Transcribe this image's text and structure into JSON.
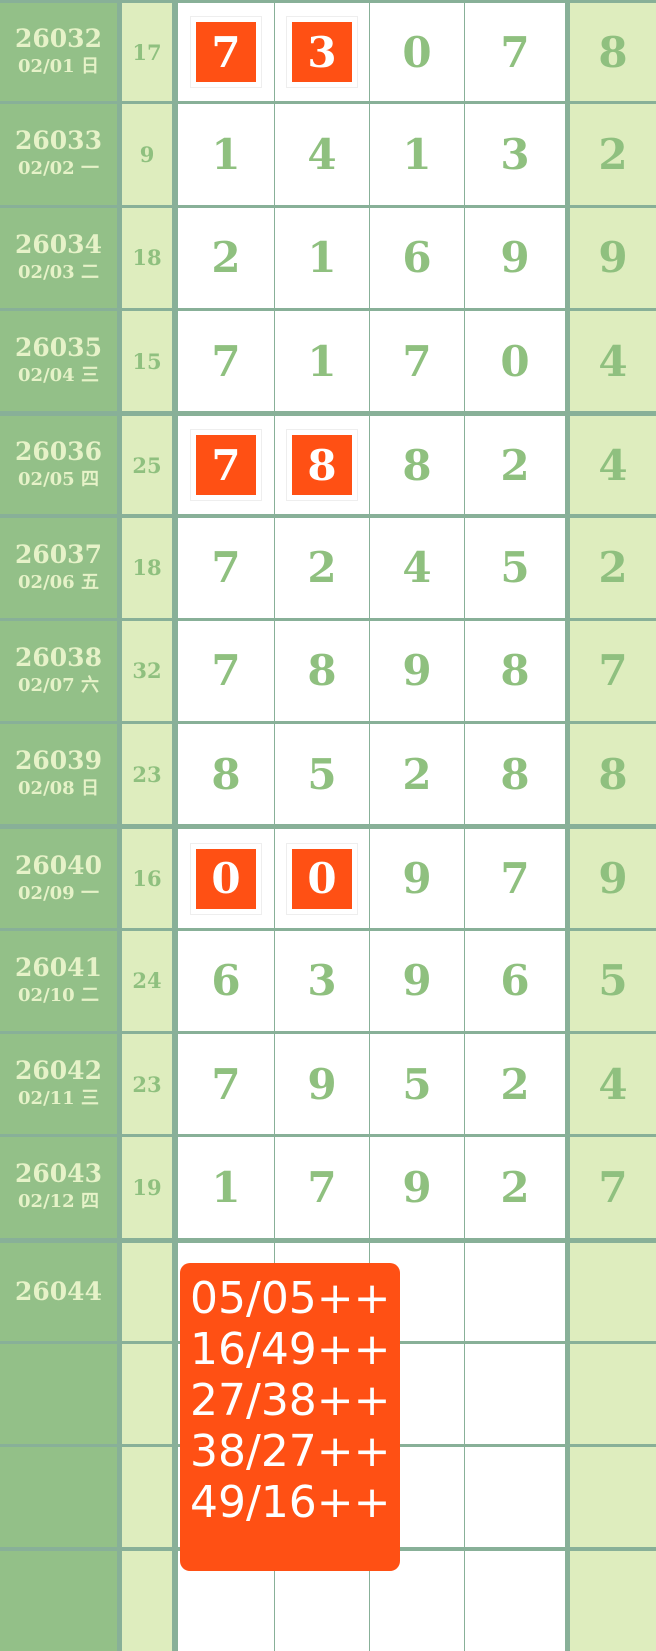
{
  "colors": {
    "id_bg": "#93c088",
    "sum_bg": "#deedbe",
    "grid": "#88b098",
    "digit": "#8fc07f",
    "highlight": "#ff5014"
  },
  "rows": [
    {
      "period": "26032",
      "date": "02/01 日",
      "sum": "17",
      "digits": [
        "7",
        "3",
        "0",
        "7"
      ],
      "last": "8",
      "highlight": [
        0,
        1
      ]
    },
    {
      "period": "26033",
      "date": "02/02 一",
      "sum": "9",
      "digits": [
        "1",
        "4",
        "1",
        "3"
      ],
      "last": "2",
      "highlight": []
    },
    {
      "period": "26034",
      "date": "02/03 二",
      "sum": "18",
      "digits": [
        "2",
        "1",
        "6",
        "9"
      ],
      "last": "9",
      "highlight": []
    },
    {
      "period": "26035",
      "date": "02/04 三",
      "sum": "15",
      "digits": [
        "7",
        "1",
        "7",
        "0"
      ],
      "last": "4",
      "highlight": []
    },
    {
      "period": "26036",
      "date": "02/05 四",
      "sum": "25",
      "digits": [
        "7",
        "8",
        "8",
        "2"
      ],
      "last": "4",
      "highlight": [
        0,
        1
      ]
    },
    {
      "period": "26037",
      "date": "02/06 五",
      "sum": "18",
      "digits": [
        "7",
        "2",
        "4",
        "5"
      ],
      "last": "2",
      "highlight": []
    },
    {
      "period": "26038",
      "date": "02/07 六",
      "sum": "32",
      "digits": [
        "7",
        "8",
        "9",
        "8"
      ],
      "last": "7",
      "highlight": []
    },
    {
      "period": "26039",
      "date": "02/08 日",
      "sum": "23",
      "digits": [
        "8",
        "5",
        "2",
        "8"
      ],
      "last": "8",
      "highlight": []
    },
    {
      "period": "26040",
      "date": "02/09 一",
      "sum": "16",
      "digits": [
        "0",
        "0",
        "9",
        "7"
      ],
      "last": "9",
      "highlight": [
        0,
        1
      ]
    },
    {
      "period": "26041",
      "date": "02/10 二",
      "sum": "24",
      "digits": [
        "6",
        "3",
        "9",
        "6"
      ],
      "last": "5",
      "highlight": []
    },
    {
      "period": "26042",
      "date": "02/11 三",
      "sum": "23",
      "digits": [
        "7",
        "9",
        "5",
        "2"
      ],
      "last": "4",
      "highlight": []
    },
    {
      "period": "26043",
      "date": "02/12 四",
      "sum": "19",
      "digits": [
        "1",
        "7",
        "9",
        "2"
      ],
      "last": "7",
      "highlight": []
    },
    {
      "period": "26044",
      "date": "",
      "sum": "",
      "digits": [
        "",
        "",
        "",
        ""
      ],
      "last": "",
      "highlight": []
    },
    {
      "period": "",
      "date": "",
      "sum": "",
      "digits": [
        "",
        "",
        "",
        ""
      ],
      "last": "",
      "highlight": []
    },
    {
      "period": "",
      "date": "",
      "sum": "",
      "digits": [
        "",
        "",
        "",
        ""
      ],
      "last": "",
      "highlight": []
    },
    {
      "period": "",
      "date": "",
      "sum": "",
      "digits": [
        "",
        "",
        "",
        ""
      ],
      "last": "",
      "highlight": []
    }
  ],
  "popup": {
    "lines": [
      "05/05++",
      "16/49++",
      "27/38++",
      "38/27++",
      "49/16++"
    ]
  }
}
